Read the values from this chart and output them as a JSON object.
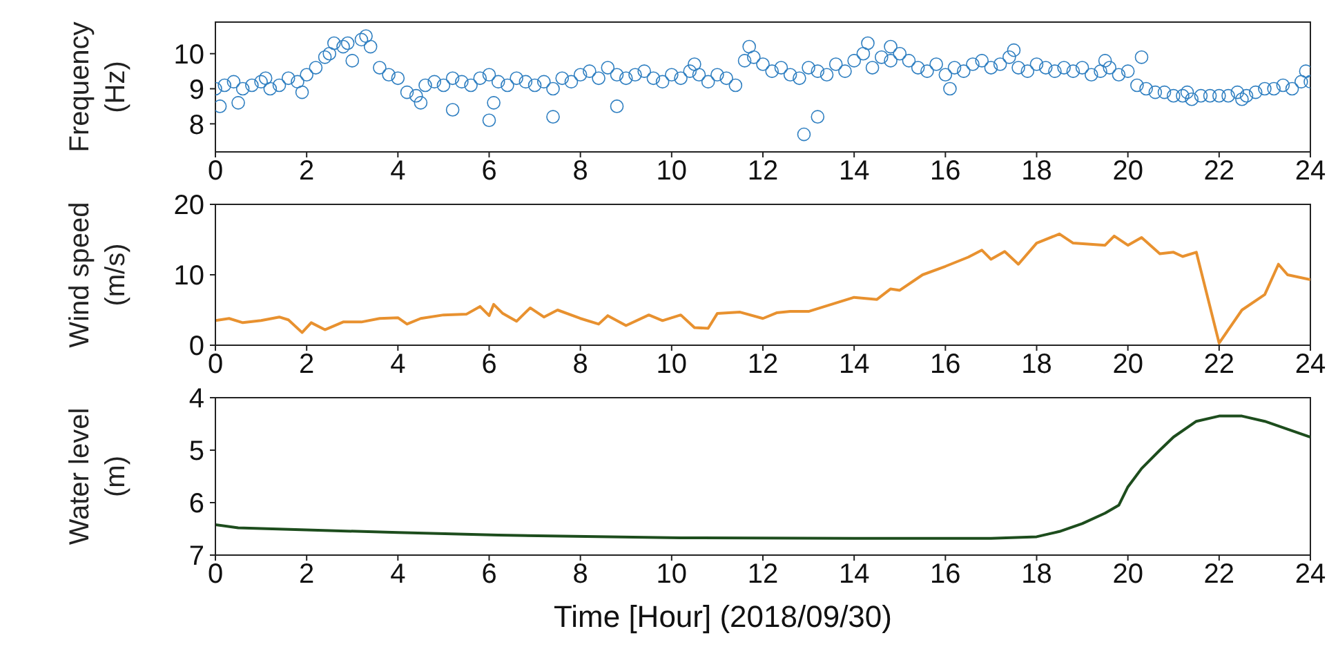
{
  "chart_data": [
    {
      "type": "scatter",
      "ylabel": "Frequency (Hz)",
      "xlim": [
        0,
        24
      ],
      "xticks": [
        0,
        2,
        4,
        6,
        8,
        10,
        12,
        14,
        16,
        18,
        20,
        22,
        24
      ],
      "ylim": [
        7.2,
        10.9
      ],
      "yticks": [
        8,
        9,
        10
      ],
      "grid": false,
      "marker": "circle",
      "series": [
        {
          "color": "#2f7fc1",
          "x": [
            0,
            0.2,
            0.4,
            0.6,
            0.8,
            1,
            1.2,
            1.4,
            1.6,
            1.8,
            2,
            2.2,
            2.4,
            2.6,
            2.8,
            3,
            3.2,
            3.4,
            3.6,
            3.8,
            4,
            4.2,
            4.4,
            4.6,
            4.8,
            5,
            5.2,
            5.4,
            5.6,
            5.8,
            6,
            6.2,
            6.4,
            6.6,
            6.8,
            7,
            7.2,
            7.4,
            7.6,
            7.8,
            8,
            8.2,
            8.4,
            8.6,
            8.8,
            9,
            9.2,
            9.4,
            9.6,
            9.8,
            10,
            10.2,
            10.4,
            10.6,
            10.8,
            11,
            11.2,
            11.4,
            11.6,
            11.8,
            12,
            12.2,
            12.4,
            12.6,
            12.8,
            13,
            13.2,
            13.4,
            13.6,
            13.8,
            14,
            14.2,
            14.4,
            14.6,
            14.8,
            15,
            15.2,
            15.4,
            15.6,
            15.8,
            16,
            16.2,
            16.4,
            16.6,
            16.8,
            17,
            17.2,
            17.4,
            17.6,
            17.8,
            18,
            18.2,
            18.4,
            18.6,
            18.8,
            19,
            19.2,
            19.4,
            19.6,
            19.8,
            20,
            20.2,
            20.4,
            20.6,
            20.8,
            21,
            21.2,
            21.4,
            21.6,
            21.8,
            22,
            22.2,
            22.4,
            22.6,
            22.8,
            23,
            23.2,
            23.4,
            23.6,
            23.8,
            24,
            0.1,
            0.5,
            1.1,
            1.9,
            2.5,
            2.9,
            3.3,
            4.5,
            5.2,
            6,
            6.1,
            7.4,
            8.8,
            10.5,
            11.7,
            12.9,
            13.2,
            14.3,
            14.8,
            16.1,
            17.5,
            19.5,
            20.3,
            21.3,
            22.5,
            23.9
          ],
          "values": [
            9,
            9.1,
            9.2,
            9,
            9.1,
            9.2,
            9,
            9.1,
            9.3,
            9.2,
            9.4,
            9.6,
            9.9,
            10.3,
            10.2,
            9.8,
            10.4,
            10.2,
            9.6,
            9.4,
            9.3,
            8.9,
            8.8,
            9.1,
            9.2,
            9.1,
            9.3,
            9.2,
            9.1,
            9.3,
            9.4,
            9.2,
            9.1,
            9.3,
            9.2,
            9.1,
            9.2,
            9.0,
            9.3,
            9.2,
            9.4,
            9.5,
            9.3,
            9.6,
            9.4,
            9.3,
            9.4,
            9.5,
            9.3,
            9.2,
            9.4,
            9.3,
            9.5,
            9.4,
            9.2,
            9.4,
            9.3,
            9.1,
            9.8,
            9.9,
            9.7,
            9.5,
            9.6,
            9.4,
            9.3,
            9.6,
            9.5,
            9.4,
            9.7,
            9.5,
            9.8,
            10,
            9.6,
            9.9,
            10.2,
            10,
            9.8,
            9.6,
            9.5,
            9.7,
            9.4,
            9.6,
            9.5,
            9.7,
            9.8,
            9.6,
            9.7,
            9.9,
            9.6,
            9.5,
            9.7,
            9.6,
            9.5,
            9.6,
            9.5,
            9.6,
            9.4,
            9.5,
            9.6,
            9.4,
            9.5,
            9.1,
            9.0,
            8.9,
            8.9,
            8.8,
            8.8,
            8.7,
            8.8,
            8.8,
            8.8,
            8.8,
            8.9,
            8.8,
            8.9,
            9.0,
            9.0,
            9.1,
            9.0,
            9.2,
            9.2,
            8.5,
            8.6,
            9.3,
            8.9,
            10.0,
            10.3,
            10.5,
            8.6,
            8.4,
            8.1,
            8.6,
            8.2,
            8.5,
            9.7,
            10.2,
            7.7,
            8.2,
            10.3,
            9.8,
            9.0,
            10.1,
            9.8,
            9.9,
            8.9,
            8.7,
            9.5
          ]
        }
      ]
    },
    {
      "type": "line",
      "ylabel": "Wind speed (m/s)",
      "xlim": [
        0,
        24
      ],
      "xticks": [
        0,
        2,
        4,
        6,
        8,
        10,
        12,
        14,
        16,
        18,
        20,
        22,
        24
      ],
      "ylim": [
        0,
        20
      ],
      "yticks": [
        0,
        10,
        20
      ],
      "grid": false,
      "marker": "none",
      "line_style": "solid",
      "series": [
        {
          "color": "#e8912f",
          "x": [
            0,
            0.3,
            0.6,
            1,
            1.4,
            1.6,
            1.9,
            2.1,
            2.4,
            2.8,
            3.2,
            3.6,
            4,
            4.2,
            4.5,
            5,
            5.5,
            5.8,
            6,
            6.1,
            6.3,
            6.6,
            6.9,
            7.2,
            7.5,
            8,
            8.4,
            8.6,
            9,
            9.5,
            9.8,
            10.2,
            10.5,
            10.8,
            11,
            11.5,
            12,
            12.3,
            12.6,
            13,
            13.5,
            14,
            14.5,
            14.8,
            15,
            15.5,
            16,
            16.5,
            16.8,
            17,
            17.3,
            17.6,
            18,
            18.5,
            18.8,
            19.5,
            19.7,
            20,
            20.3,
            20.7,
            21,
            21.2,
            21.5,
            22,
            22.5,
            23,
            23.3,
            23.5,
            24
          ],
          "values": [
            3.5,
            3.8,
            3.2,
            3.5,
            4,
            3.6,
            1.8,
            3.2,
            2.2,
            3.3,
            3.3,
            3.8,
            3.9,
            3,
            3.8,
            4.3,
            4.4,
            5.5,
            4.2,
            5.8,
            4.5,
            3.4,
            5.3,
            4,
            5,
            3.8,
            3,
            4.2,
            2.8,
            4.3,
            3.5,
            4.3,
            2.5,
            2.4,
            4.5,
            4.7,
            3.8,
            4.6,
            4.8,
            4.8,
            5.8,
            6.8,
            6.5,
            8,
            7.8,
            10,
            11.2,
            12.5,
            13.5,
            12.2,
            13.3,
            11.5,
            14.5,
            15.8,
            14.5,
            14.2,
            15.5,
            14.2,
            15.3,
            13,
            13.2,
            12.6,
            13.2,
            0.3,
            5,
            7.2,
            11.5,
            10,
            9.3
          ]
        }
      ]
    },
    {
      "type": "line",
      "ylabel": "Water level (m)",
      "xlabel": "Time [Hour] (2018/09/30)",
      "xlim": [
        0,
        24
      ],
      "xticks": [
        0,
        2,
        4,
        6,
        8,
        10,
        12,
        14,
        16,
        18,
        20,
        22,
        24
      ],
      "ylim": [
        7,
        4
      ],
      "yticks": [
        4,
        5,
        6,
        7
      ],
      "grid": false,
      "marker": "none",
      "line_style": "solid",
      "series": [
        {
          "color": "#1d4d1d",
          "x": [
            0,
            0.5,
            2,
            4,
            6.2,
            10.2,
            14,
            17,
            18,
            18.5,
            19,
            19.5,
            19.8,
            20,
            20.3,
            20.7,
            21,
            21.5,
            22,
            22.5,
            23,
            23.5,
            24
          ],
          "values": [
            6.42,
            6.48,
            6.52,
            6.57,
            6.62,
            6.67,
            6.68,
            6.68,
            6.65,
            6.55,
            6.4,
            6.2,
            6.05,
            5.7,
            5.35,
            5,
            4.75,
            4.45,
            4.35,
            4.35,
            4.45,
            4.6,
            4.75
          ]
        }
      ]
    }
  ]
}
